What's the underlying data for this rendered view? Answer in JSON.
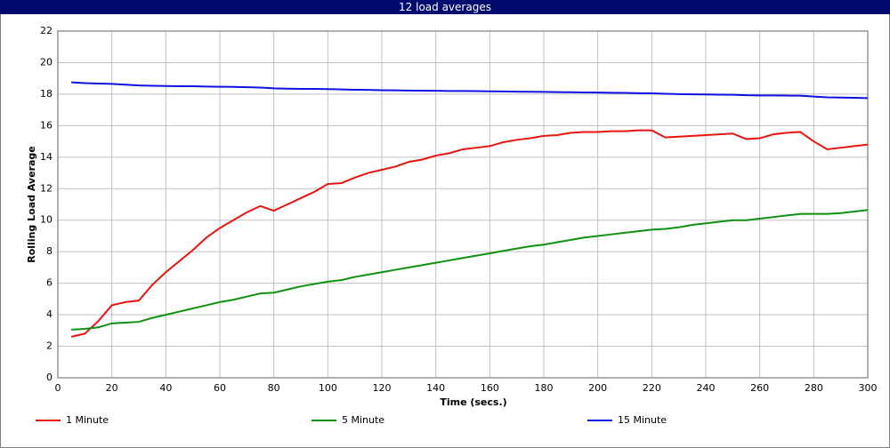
{
  "chart_data": {
    "type": "line",
    "title": "12 load averages",
    "x_label": "Time (secs.)",
    "y_label": "Rolling Load Average",
    "x": [
      5,
      10,
      15,
      20,
      25,
      30,
      35,
      40,
      45,
      50,
      55,
      60,
      65,
      70,
      75,
      80,
      85,
      90,
      95,
      100,
      105,
      110,
      115,
      120,
      125,
      130,
      135,
      140,
      145,
      150,
      155,
      160,
      165,
      170,
      175,
      180,
      185,
      190,
      195,
      200,
      205,
      210,
      215,
      220,
      225,
      230,
      235,
      240,
      245,
      250,
      255,
      260,
      265,
      270,
      275,
      280,
      285,
      290,
      295,
      300
    ],
    "series": [
      {
        "name": "1 Minute",
        "color": "#e8140e",
        "values": [
          2.6,
          2.8,
          3.6,
          4.6,
          4.8,
          4.9,
          5.9,
          6.7,
          7.4,
          8.1,
          8.9,
          9.5,
          10.0,
          10.5,
          10.9,
          10.6,
          11.0,
          11.4,
          11.8,
          12.3,
          12.35,
          12.7,
          13.0,
          13.2,
          13.4,
          13.7,
          13.85,
          14.1,
          14.25,
          14.5,
          14.6,
          14.7,
          14.95,
          15.1,
          15.2,
          15.35,
          15.4,
          15.55,
          15.6,
          15.6,
          15.65,
          15.65,
          15.7,
          15.7,
          15.25,
          15.3,
          15.35,
          15.4,
          15.45,
          15.5,
          15.15,
          15.2,
          15.45,
          15.55,
          15.6,
          15.0,
          14.5,
          14.6,
          14.7,
          14.8
        ]
      },
      {
        "name": "5 Minute",
        "color": "#109010",
        "values": [
          3.05,
          3.1,
          3.2,
          3.45,
          3.5,
          3.55,
          3.8,
          4.0,
          4.2,
          4.4,
          4.6,
          4.8,
          4.95,
          5.15,
          5.35,
          5.4,
          5.6,
          5.8,
          5.95,
          6.1,
          6.2,
          6.4,
          6.55,
          6.7,
          6.85,
          7.0,
          7.15,
          7.3,
          7.45,
          7.6,
          7.75,
          7.9,
          8.05,
          8.2,
          8.35,
          8.45,
          8.6,
          8.75,
          8.9,
          9.0,
          9.1,
          9.2,
          9.3,
          9.4,
          9.45,
          9.55,
          9.7,
          9.8,
          9.9,
          10.0,
          10.0,
          10.1,
          10.2,
          10.3,
          10.4,
          10.4,
          10.4,
          10.45,
          10.55,
          10.65
        ]
      },
      {
        "name": "15 Minute",
        "color": "#1010e0",
        "values": [
          18.75,
          18.7,
          18.67,
          18.65,
          18.6,
          18.55,
          18.53,
          18.52,
          18.5,
          18.5,
          18.48,
          18.47,
          18.46,
          18.44,
          18.42,
          18.37,
          18.35,
          18.33,
          18.33,
          18.32,
          18.3,
          18.28,
          18.27,
          18.25,
          18.24,
          18.23,
          18.22,
          18.21,
          18.2,
          18.2,
          18.19,
          18.18,
          18.17,
          18.16,
          18.15,
          18.14,
          18.13,
          18.12,
          18.11,
          18.1,
          18.09,
          18.08,
          18.06,
          18.05,
          18.02,
          18.0,
          17.99,
          17.98,
          17.97,
          17.96,
          17.93,
          17.92,
          17.92,
          17.91,
          17.9,
          17.85,
          17.8,
          17.78,
          17.77,
          17.75
        ]
      }
    ],
    "xlim": [
      0,
      300
    ],
    "xticks": [
      0,
      20,
      40,
      60,
      80,
      100,
      120,
      140,
      160,
      180,
      200,
      220,
      240,
      260,
      280,
      300
    ],
    "ylim": [
      0,
      22
    ],
    "yticks": [
      0,
      2,
      4,
      6,
      8,
      10,
      12,
      14,
      16,
      18,
      20,
      22
    ],
    "grid": true
  }
}
